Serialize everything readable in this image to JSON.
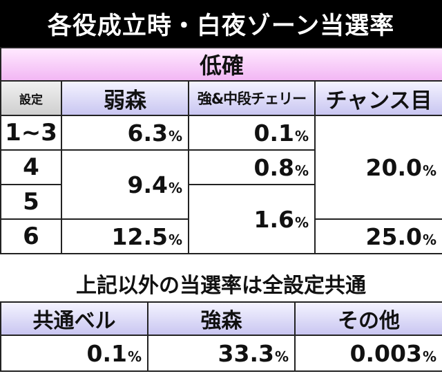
{
  "title": "各役成立時・白夜ゾーン当選率",
  "category": "低確",
  "table": {
    "setting_header": "設定",
    "columns": [
      "弱森",
      "強&中段チェリー",
      "チャンス目"
    ],
    "rows": [
      {
        "setting": "1~3",
        "weak_forest": "6.3",
        "strong_cherry": "0.1"
      },
      {
        "setting": "4",
        "strong_cherry": "0.8"
      },
      {
        "setting": "5"
      },
      {
        "setting": "6",
        "weak_forest": "12.5",
        "chance": "25.0"
      }
    ],
    "merged": {
      "weak_forest_4_5": "9.4",
      "strong_cherry_5_6": "1.6",
      "chance_1_5": "20.0"
    },
    "percent_sign": "%"
  },
  "note": "上記以外の当選率は全設定共通",
  "common": {
    "headers": [
      "共通ベル",
      "強森",
      "その他"
    ],
    "values": [
      "0.1",
      "33.3",
      "0.003"
    ]
  },
  "colors": {
    "title_bg": "#000000",
    "category_bg": "#f2b7f4",
    "header_bg": "#c9c6f1",
    "setting_header_bg": "#cfcfcf"
  }
}
